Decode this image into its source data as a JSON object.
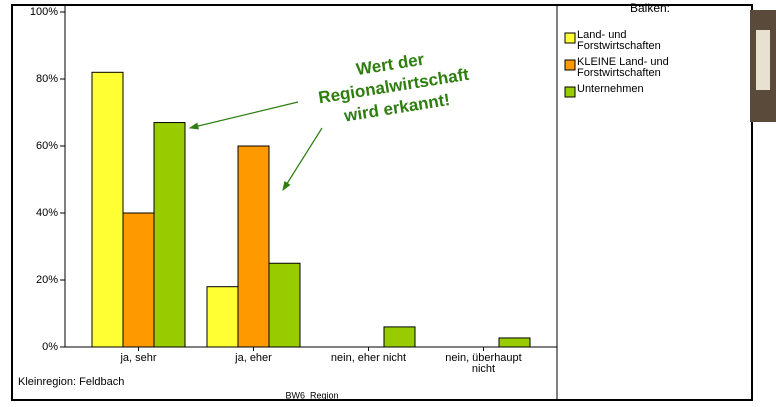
{
  "chart_data": {
    "type": "bar",
    "categories": [
      "ja, sehr",
      "ja, eher",
      "nein, eher nicht",
      "nein, überhaupt nicht"
    ],
    "series": [
      {
        "name": "Land- und Forstwirtschaften",
        "color": "#ffff33",
        "values": [
          82,
          18,
          0,
          0
        ]
      },
      {
        "name": "KLEINE Land- und Forstwirtschaften",
        "color": "#ff9900",
        "values": [
          40,
          60,
          0,
          0
        ]
      },
      {
        "name": "Unternehmen",
        "color": "#99cc00",
        "values": [
          67,
          25,
          6,
          2.7
        ]
      }
    ],
    "ylim": [
      0,
      100
    ],
    "yticks": [
      {
        "value": 0,
        "label": "0%"
      },
      {
        "value": 20,
        "label": "20%"
      },
      {
        "value": 40,
        "label": "40%"
      },
      {
        "value": 60,
        "label": "60%"
      },
      {
        "value": 80,
        "label": "80%"
      },
      {
        "value": 100,
        "label": "100%"
      }
    ],
    "legend_title": "Balken:",
    "legend_position": "right",
    "xlabel": "BW6_Region",
    "footnote": "Kleinregion: Feldbach",
    "annotation": [
      "Wert der",
      "Regionalwirtschaft",
      "wird erkannt!"
    ]
  }
}
